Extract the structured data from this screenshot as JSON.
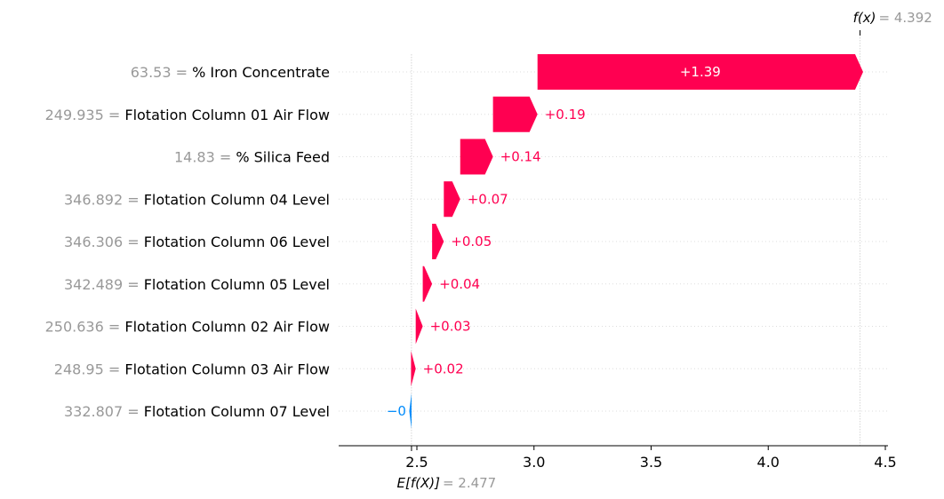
{
  "chart_data": {
    "type": "waterfall",
    "base_value": 2.477,
    "final_value": 4.392,
    "base_label_math": "E[f(X)]",
    "final_label_math": "f(x)",
    "base_value_text": "= 2.477",
    "final_value_text": "= 4.392",
    "xlim": [
      2.17,
      4.5
    ],
    "x_ticks": [
      2.5,
      3.0,
      3.5,
      4.0,
      4.5
    ],
    "x_tick_labels": [
      "2.5",
      "3.0",
      "3.5",
      "4.0",
      "4.5"
    ],
    "features": [
      {
        "value": "63.53",
        "name": "% Iron Concentrate",
        "contribution": 1.39,
        "label": "+1.39"
      },
      {
        "value": "249.935",
        "name": "Flotation Column 01 Air Flow",
        "contribution": 0.19,
        "label": "+0.19"
      },
      {
        "value": "14.83",
        "name": "% Silica Feed",
        "contribution": 0.14,
        "label": "+0.14"
      },
      {
        "value": "346.892",
        "name": "Flotation Column 04 Level",
        "contribution": 0.07,
        "label": "+0.07"
      },
      {
        "value": "346.306",
        "name": "Flotation Column 06 Level",
        "contribution": 0.05,
        "label": "+0.05"
      },
      {
        "value": "342.489",
        "name": "Flotation Column 05 Level",
        "contribution": 0.04,
        "label": "+0.04"
      },
      {
        "value": "250.636",
        "name": "Flotation Column 02 Air Flow",
        "contribution": 0.03,
        "label": "+0.03"
      },
      {
        "value": "248.95",
        "name": "Flotation Column 03 Air Flow",
        "contribution": 0.02,
        "label": "+0.02"
      },
      {
        "value": "332.807",
        "name": "Flotation Column 07 Level",
        "contribution": -0.002,
        "label": "−0"
      }
    ],
    "colors": {
      "positive": "#ff0051",
      "negative": "#008bfb",
      "muted_text": "#999999",
      "grid": "#dddddd"
    }
  }
}
